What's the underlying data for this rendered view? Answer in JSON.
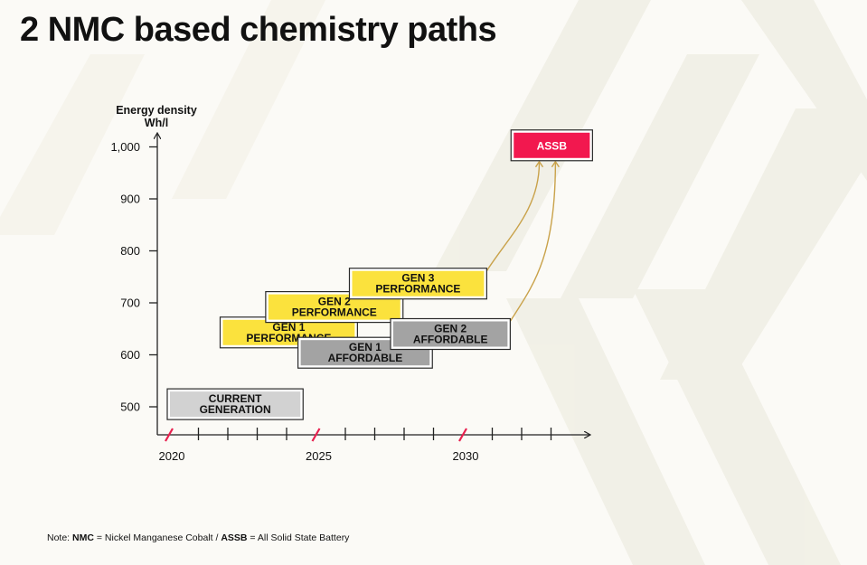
{
  "title": "2 NMC based chemistry paths",
  "chart_data": {
    "type": "timeline-boxes",
    "ylabel_line1": "Energy density",
    "ylabel_line2": "Wh/l",
    "ylim": [
      450,
      1050
    ],
    "y_ticks": [
      500,
      600,
      700,
      800,
      900,
      1000
    ],
    "y_tick_labels": [
      "500",
      "600",
      "700",
      "800",
      "900",
      "1,000"
    ],
    "xlim": [
      2020,
      2034
    ],
    "x_ticks": [
      2020,
      2021,
      2022,
      2023,
      2024,
      2025,
      2026,
      2027,
      2028,
      2029,
      2030,
      2031,
      2032,
      2033
    ],
    "x_tick_labels": [
      {
        "year": 2020,
        "label": "2020"
      },
      {
        "year": 2025,
        "label": "2025"
      },
      {
        "year": 2030,
        "label": "2030"
      }
    ],
    "axis_breaks": [
      2020,
      2025,
      2030
    ],
    "boxes": [
      {
        "id": "current-generation",
        "line1": "CURRENT",
        "line2": "GENERATION",
        "x_start": 2020,
        "x_end": 2024.5,
        "y": 505,
        "style": "light"
      },
      {
        "id": "gen1-performance",
        "line1": "GEN 1",
        "line2": "PERFORMANCE",
        "x_start": 2021.8,
        "x_end": 2026.35,
        "y": 643,
        "style": "yellow"
      },
      {
        "id": "gen2-performance",
        "line1": "GEN 2",
        "line2": "PERFORMANCE",
        "x_start": 2023.35,
        "x_end": 2027.9,
        "y": 692,
        "style": "yellow"
      },
      {
        "id": "gen3-performance",
        "line1": "GEN 3",
        "line2": "PERFORMANCE",
        "x_start": 2026.2,
        "x_end": 2030.75,
        "y": 737,
        "style": "yellow"
      },
      {
        "id": "gen1-affordable",
        "line1": "GEN 1",
        "line2": "AFFORDABLE",
        "x_start": 2024.45,
        "x_end": 2028.9,
        "y": 604,
        "style": "gray"
      },
      {
        "id": "gen2-affordable",
        "line1": "GEN 2",
        "line2": "AFFORDABLE",
        "x_start": 2027.6,
        "x_end": 2031.55,
        "y": 640,
        "style": "gray"
      },
      {
        "id": "assb",
        "line1": "ASSB",
        "line2": "",
        "x_start": 2031.7,
        "x_end": 2034.35,
        "y": 1003,
        "style": "red"
      }
    ],
    "arrows": [
      {
        "from": "gen3-performance",
        "to_x": 2032.6,
        "to_y": 970
      },
      {
        "from": "gen2-affordable",
        "to_x": 2033.15,
        "to_y": 970
      }
    ],
    "colors": {
      "yellow": "#fbe23d",
      "gray": "#a3a3a3",
      "light": "#d2d2d2",
      "red": "#f2184f",
      "arrow": "#c9a24a",
      "axis": "#222222",
      "break": "#e8204f"
    }
  },
  "note": {
    "prefix": "Note: ",
    "term1": "NMC",
    "def1": " = Nickel Manganese Cobalt / ",
    "term2": "ASSB",
    "def2": " = All Solid State Battery"
  }
}
